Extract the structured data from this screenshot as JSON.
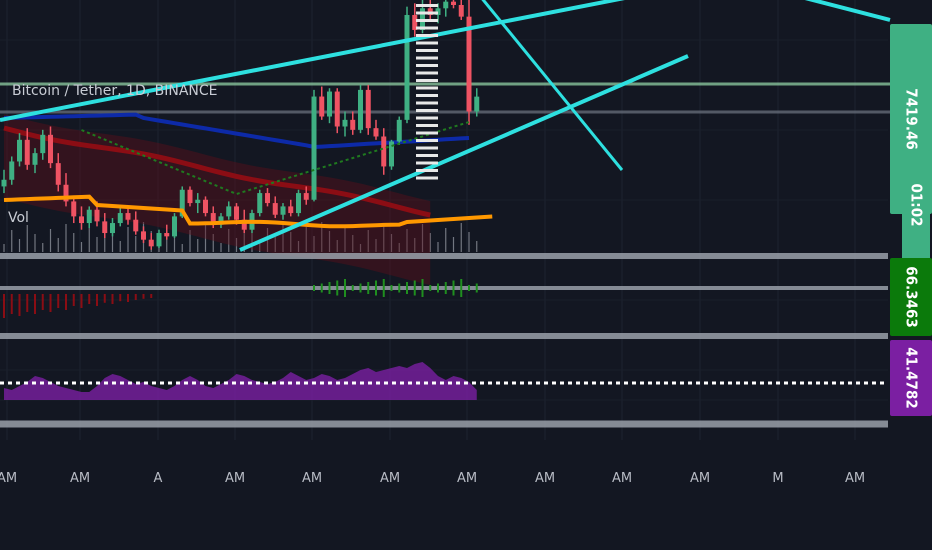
{
  "symbol_title": "Bitcoin / Tether, 1D, BINANCE",
  "volume_label": "Vol",
  "price_badges": [
    {
      "text": "7419.46",
      "color": "#3fb083"
    },
    {
      "text": "01:02",
      "color": "#3fb083"
    },
    {
      "text": "66.3463",
      "color": "#0b7a0b"
    },
    {
      "text": "41.4782",
      "color": "#7b1fa2"
    }
  ],
  "x_tick_labels": [
    "AM",
    "AM",
    "A",
    "AM",
    "AM",
    "AM",
    "AM",
    "AM",
    "AM",
    "AM",
    "M",
    "AM"
  ],
  "colors": {
    "background": "#131722",
    "up": "#3fb083",
    "down": "#ef5363",
    "trendline": "#2ee0e0",
    "ma_orange": "#ff9800",
    "ma_navy": "#0d2aa8",
    "ma_red": "#8b0d14",
    "ma_green": "#1f7a1f",
    "rsi": "#8e24aa",
    "separator": "#9aa0aa"
  },
  "chart_data": [
    {
      "type": "candlestick",
      "title": "Bitcoin / Tether, 1D, BINANCE",
      "series": [
        {
          "name": "OHLC",
          "values": [
            [
              6880,
              6980,
              6840,
              6920
            ],
            [
              6920,
              7060,
              6890,
              7030
            ],
            [
              7030,
              7200,
              7000,
              7160
            ],
            [
              7160,
              7230,
              6980,
              7010
            ],
            [
              7010,
              7110,
              6960,
              7080
            ],
            [
              7080,
              7220,
              7040,
              7190
            ],
            [
              7190,
              7240,
              6990,
              7020
            ],
            [
              7020,
              7080,
              6850,
              6890
            ],
            [
              6890,
              6960,
              6760,
              6790
            ],
            [
              6790,
              6820,
              6660,
              6700
            ],
            [
              6700,
              6760,
              6620,
              6660
            ],
            [
              6660,
              6760,
              6630,
              6740
            ],
            [
              6740,
              6790,
              6640,
              6670
            ],
            [
              6670,
              6720,
              6570,
              6600
            ],
            [
              6600,
              6690,
              6580,
              6660
            ],
            [
              6660,
              6760,
              6640,
              6720
            ],
            [
              6720,
              6760,
              6650,
              6680
            ],
            [
              6680,
              6730,
              6590,
              6610
            ],
            [
              6610,
              6640,
              6540,
              6560
            ],
            [
              6560,
              6600,
              6500,
              6520
            ],
            [
              6520,
              6620,
              6510,
              6600
            ],
            [
              6600,
              6650,
              6560,
              6580
            ],
            [
              6580,
              6720,
              6570,
              6700
            ],
            [
              6700,
              6880,
              6690,
              6860
            ],
            [
              6860,
              6880,
              6760,
              6780
            ],
            [
              6780,
              6840,
              6720,
              6800
            ],
            [
              6800,
              6820,
              6700,
              6720
            ],
            [
              6720,
              6760,
              6630,
              6650
            ],
            [
              6650,
              6720,
              6630,
              6700
            ],
            [
              6700,
              6790,
              6680,
              6760
            ],
            [
              6760,
              6780,
              6650,
              6680
            ],
            [
              6680,
              6740,
              6600,
              6620
            ],
            [
              6620,
              6740,
              6600,
              6720
            ],
            [
              6720,
              6860,
              6700,
              6840
            ],
            [
              6840,
              6870,
              6760,
              6780
            ],
            [
              6780,
              6820,
              6690,
              6710
            ],
            [
              6710,
              6780,
              6680,
              6760
            ],
            [
              6760,
              6800,
              6700,
              6720
            ],
            [
              6720,
              6860,
              6700,
              6840
            ],
            [
              6840,
              6880,
              6770,
              6800
            ],
            [
              6800,
              7460,
              6790,
              7420
            ],
            [
              7420,
              7480,
              7280,
              7300
            ],
            [
              7300,
              7470,
              7260,
              7450
            ],
            [
              7450,
              7470,
              7200,
              7240
            ],
            [
              7240,
              7330,
              7180,
              7280
            ],
            [
              7280,
              7330,
              7190,
              7220
            ],
            [
              7220,
              7490,
              7200,
              7460
            ],
            [
              7460,
              7490,
              7190,
              7230
            ],
            [
              7230,
              7280,
              7160,
              7180
            ],
            [
              7180,
              7230,
              6950,
              7000
            ],
            [
              7000,
              7160,
              6980,
              7150
            ],
            [
              7150,
              7300,
              7130,
              7280
            ],
            [
              7280,
              7960,
              7260,
              7910
            ],
            [
              7910,
              7980,
              7780,
              7820
            ],
            [
              7820,
              8000,
              7800,
              7950
            ],
            [
              7950,
              8010,
              7880,
              7910
            ],
            [
              7910,
              7980,
              7860,
              7950
            ],
            [
              7950,
              8020,
              7900,
              7990
            ],
            [
              7990,
              8010,
              7950,
              7970
            ],
            [
              7970,
              8020,
              7880,
              7900
            ],
            [
              7900,
              8000,
              7250,
              7330
            ],
            [
              7330,
              7470,
              7300,
              7419.46
            ]
          ]
        }
      ]
    },
    {
      "type": "bar",
      "title": "",
      "values": [
        1,
        -1,
        -1,
        1,
        -1,
        1,
        1,
        -1,
        -1,
        -1,
        -1,
        1,
        -1,
        -1,
        1,
        1,
        -1,
        -1,
        -1,
        -1,
        1,
        -1,
        1,
        1,
        -1,
        1,
        -1,
        -1,
        1,
        1,
        -1,
        -1,
        1,
        1,
        -1,
        -1,
        1,
        -1,
        1,
        -1,
        1,
        -1,
        1,
        -1,
        1,
        -1,
        1,
        -1,
        -1,
        -1,
        1,
        1,
        1,
        -1,
        1,
        -1,
        1,
        1,
        -1,
        -1,
        -1,
        1
      ]
    },
    {
      "type": "bar",
      "title": "",
      "series": [
        {
          "name": "",
          "values": [
            -0.6,
            -0.5,
            -0.55,
            -0.45,
            -0.5,
            -0.4,
            -0.45,
            -0.35,
            -0.4,
            -0.3,
            -0.35,
            -0.25,
            -0.3,
            -0.22,
            -0.25,
            -0.18,
            -0.2,
            -0.15,
            -0.12,
            -0.1,
            0,
            0,
            0,
            0,
            0,
            0,
            0,
            0,
            0,
            0,
            0,
            0,
            0,
            0,
            0,
            0,
            0,
            0,
            0,
            0,
            0.05,
            0.08,
            0.1,
            0.12,
            0.14,
            0.16,
            0.18,
            0.2,
            0.22,
            0.25,
            0.28,
            0.3,
            0.33,
            0.36,
            0.38,
            0.4,
            0.42,
            0.4,
            0.35,
            0.3,
            0.2,
            0.15
          ]
        }
      ]
    },
    {
      "type": "area",
      "title": "",
      "series": [
        {
          "name": "",
          "values": [
            46,
            45,
            47,
            49,
            52,
            51,
            49,
            47,
            46,
            45,
            44,
            44,
            47,
            51,
            53,
            52,
            50,
            48,
            49,
            47,
            46,
            45,
            47,
            50,
            52,
            50,
            47,
            46,
            48,
            50,
            53,
            52,
            50,
            49,
            48,
            49,
            51,
            54,
            52,
            50,
            51,
            53,
            52,
            50,
            51,
            53,
            55,
            56,
            54,
            55,
            56,
            57,
            56,
            58,
            59,
            56,
            52,
            50,
            52,
            51,
            49,
            45
          ]
        }
      ],
      "reference_line": 41.4782
    }
  ]
}
